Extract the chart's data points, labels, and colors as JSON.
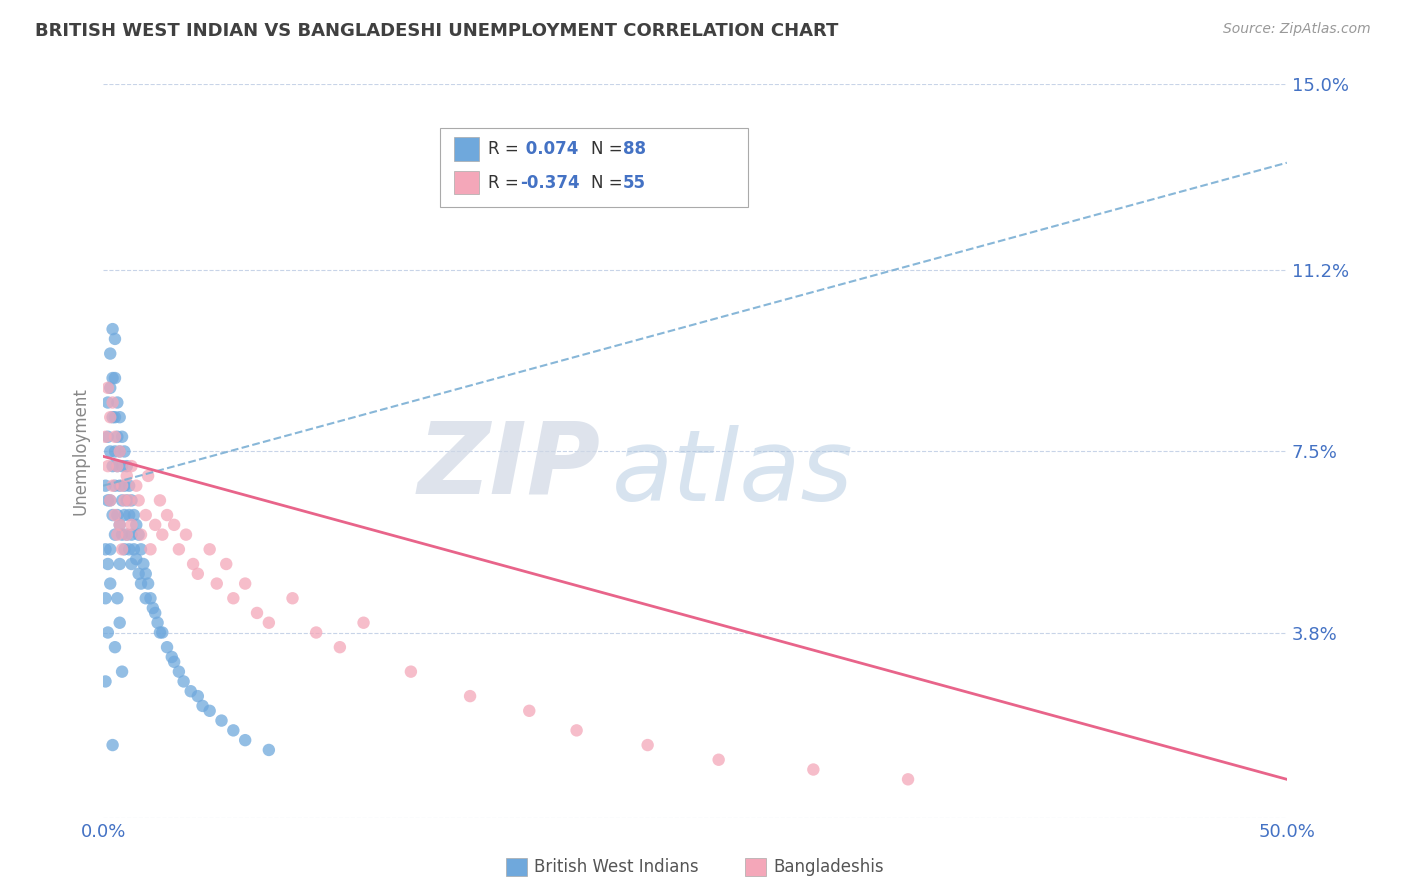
{
  "title": "BRITISH WEST INDIAN VS BANGLADESHI UNEMPLOYMENT CORRELATION CHART",
  "source": "Source: ZipAtlas.com",
  "ylabel": "Unemployment",
  "xlim": [
    0.0,
    0.5
  ],
  "ylim": [
    0.0,
    0.15
  ],
  "yticks": [
    0.0,
    0.038,
    0.075,
    0.112,
    0.15
  ],
  "ytick_labels": [
    "",
    "3.8%",
    "7.5%",
    "11.2%",
    "15.0%"
  ],
  "xticks": [
    0.0,
    0.5
  ],
  "xtick_labels": [
    "0.0%",
    "50.0%"
  ],
  "blue_color": "#6fa8dc",
  "pink_color": "#f4a7b9",
  "blue_line_color": "#7bafd4",
  "pink_line_color": "#e8648a",
  "grid_color": "#c8d4e8",
  "title_color": "#404040",
  "axis_label_color": "#4472c4",
  "label1": "British West Indians",
  "label2": "Bangladeshis",
  "watermark_zip": "ZIP",
  "watermark_atlas": "atlas",
  "blue_trend": [
    0.0,
    0.5,
    0.068,
    0.134
  ],
  "pink_trend": [
    0.0,
    0.5,
    0.074,
    0.008
  ],
  "blue_scatter_x": [
    0.001,
    0.001,
    0.001,
    0.002,
    0.002,
    0.002,
    0.002,
    0.003,
    0.003,
    0.003,
    0.003,
    0.003,
    0.004,
    0.004,
    0.004,
    0.004,
    0.004,
    0.005,
    0.005,
    0.005,
    0.005,
    0.005,
    0.005,
    0.006,
    0.006,
    0.006,
    0.006,
    0.007,
    0.007,
    0.007,
    0.007,
    0.007,
    0.008,
    0.008,
    0.008,
    0.008,
    0.009,
    0.009,
    0.009,
    0.009,
    0.01,
    0.01,
    0.01,
    0.011,
    0.011,
    0.011,
    0.012,
    0.012,
    0.012,
    0.013,
    0.013,
    0.014,
    0.014,
    0.015,
    0.015,
    0.016,
    0.016,
    0.017,
    0.018,
    0.018,
    0.019,
    0.02,
    0.021,
    0.022,
    0.023,
    0.024,
    0.025,
    0.027,
    0.029,
    0.03,
    0.032,
    0.034,
    0.037,
    0.04,
    0.042,
    0.045,
    0.05,
    0.055,
    0.06,
    0.07,
    0.001,
    0.002,
    0.003,
    0.004,
    0.005,
    0.006,
    0.007,
    0.008
  ],
  "blue_scatter_y": [
    0.068,
    0.055,
    0.045,
    0.085,
    0.078,
    0.065,
    0.052,
    0.095,
    0.088,
    0.075,
    0.065,
    0.055,
    0.1,
    0.09,
    0.082,
    0.072,
    0.062,
    0.098,
    0.09,
    0.082,
    0.075,
    0.068,
    0.058,
    0.085,
    0.078,
    0.072,
    0.062,
    0.082,
    0.075,
    0.068,
    0.06,
    0.052,
    0.078,
    0.072,
    0.065,
    0.058,
    0.075,
    0.068,
    0.062,
    0.055,
    0.072,
    0.065,
    0.058,
    0.068,
    0.062,
    0.055,
    0.065,
    0.058,
    0.052,
    0.062,
    0.055,
    0.06,
    0.053,
    0.058,
    0.05,
    0.055,
    0.048,
    0.052,
    0.05,
    0.045,
    0.048,
    0.045,
    0.043,
    0.042,
    0.04,
    0.038,
    0.038,
    0.035,
    0.033,
    0.032,
    0.03,
    0.028,
    0.026,
    0.025,
    0.023,
    0.022,
    0.02,
    0.018,
    0.016,
    0.014,
    0.028,
    0.038,
    0.048,
    0.015,
    0.035,
    0.045,
    0.04,
    0.03
  ],
  "pink_scatter_x": [
    0.001,
    0.002,
    0.002,
    0.003,
    0.003,
    0.004,
    0.004,
    0.005,
    0.005,
    0.006,
    0.006,
    0.007,
    0.007,
    0.008,
    0.008,
    0.009,
    0.01,
    0.01,
    0.011,
    0.012,
    0.012,
    0.014,
    0.015,
    0.016,
    0.018,
    0.019,
    0.02,
    0.022,
    0.024,
    0.025,
    0.027,
    0.03,
    0.032,
    0.035,
    0.038,
    0.04,
    0.045,
    0.048,
    0.052,
    0.055,
    0.06,
    0.065,
    0.07,
    0.08,
    0.09,
    0.1,
    0.11,
    0.13,
    0.155,
    0.18,
    0.2,
    0.23,
    0.26,
    0.3,
    0.34
  ],
  "pink_scatter_y": [
    0.078,
    0.088,
    0.072,
    0.082,
    0.065,
    0.085,
    0.068,
    0.078,
    0.062,
    0.072,
    0.058,
    0.075,
    0.06,
    0.068,
    0.055,
    0.065,
    0.07,
    0.058,
    0.065,
    0.072,
    0.06,
    0.068,
    0.065,
    0.058,
    0.062,
    0.07,
    0.055,
    0.06,
    0.065,
    0.058,
    0.062,
    0.06,
    0.055,
    0.058,
    0.052,
    0.05,
    0.055,
    0.048,
    0.052,
    0.045,
    0.048,
    0.042,
    0.04,
    0.045,
    0.038,
    0.035,
    0.04,
    0.03,
    0.025,
    0.022,
    0.018,
    0.015,
    0.012,
    0.01,
    0.008
  ]
}
